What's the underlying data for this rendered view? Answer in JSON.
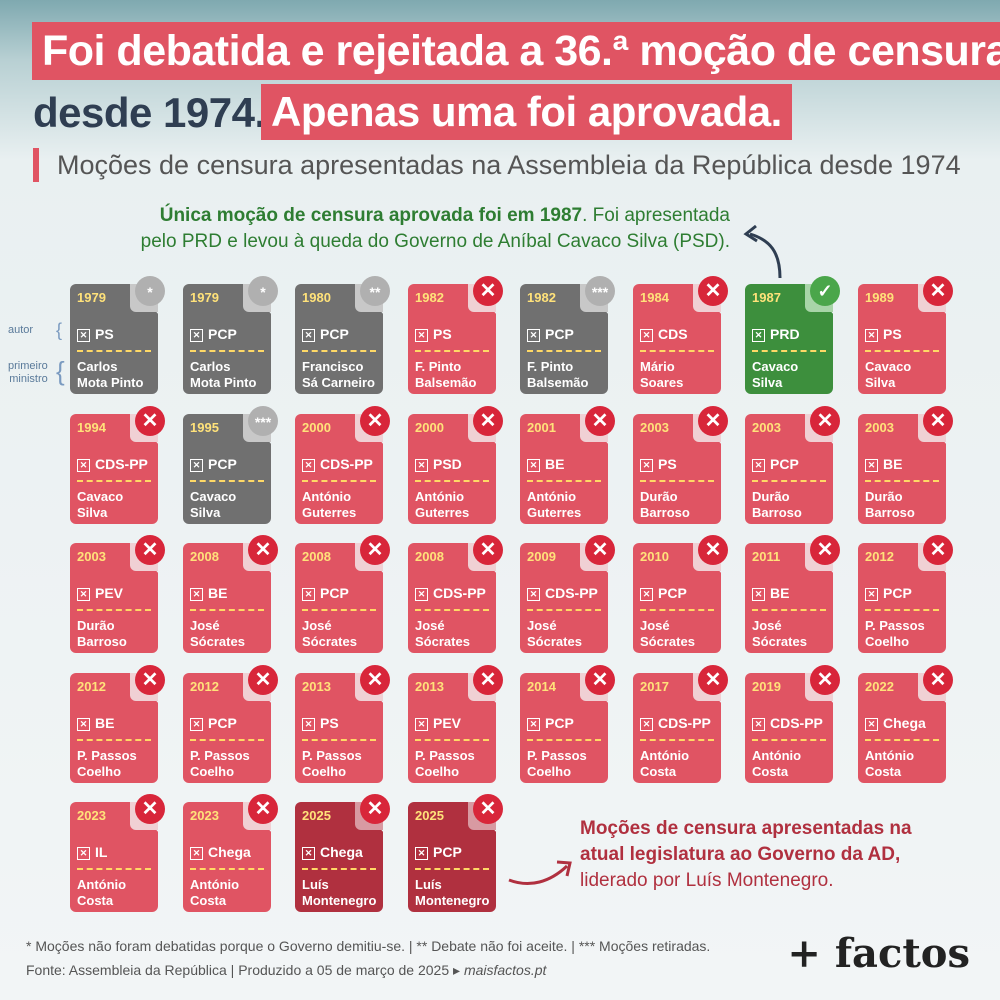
{
  "header": {
    "title_line1": "Foi debatida e rejeitada a 36.ª moção de  censura",
    "title_line2a": "desde 1974.",
    "title_line2b": "Apenas uma foi aprovada.",
    "subtitle": "Moções de censura apresentadas na Assembleia da República desde 1974"
  },
  "top_note": {
    "bold": "Única moção de censura aprovada foi em 1987",
    "rest1": ". Foi apresentada",
    "line2": "pelo PRD e levou à queda do Governo de Aníbal Cavaco Silva (PSD)."
  },
  "legend": {
    "autor": "autor",
    "pm_line1": "primeiro",
    "pm_line2": "ministro"
  },
  "cards": [
    {
      "year": "1979",
      "party": "PS",
      "pm1": "Carlos",
      "pm2": "Mota Pinto",
      "status": "grey",
      "mark": "*"
    },
    {
      "year": "1979",
      "party": "PCP",
      "pm1": "Carlos",
      "pm2": "Mota Pinto",
      "status": "grey",
      "mark": "*"
    },
    {
      "year": "1980",
      "party": "PCP",
      "pm1": "Francisco",
      "pm2": "Sá Carneiro",
      "status": "grey",
      "mark": "**"
    },
    {
      "year": "1982",
      "party": "PS",
      "pm1": "F. Pinto",
      "pm2": "Balsemão",
      "status": "rej",
      "mark": "✕"
    },
    {
      "year": "1982",
      "party": "PCP",
      "pm1": "F. Pinto",
      "pm2": "Balsemão",
      "status": "grey",
      "mark": "***"
    },
    {
      "year": "1984",
      "party": "CDS",
      "pm1": "Mário",
      "pm2": "Soares",
      "status": "rej",
      "mark": "✕"
    },
    {
      "year": "1987",
      "party": "PRD",
      "pm1": "Cavaco",
      "pm2": "Silva",
      "status": "ok",
      "mark": "✓"
    },
    {
      "year": "1989",
      "party": "PS",
      "pm1": "Cavaco",
      "pm2": "Silva",
      "status": "rej",
      "mark": "✕"
    },
    {
      "year": "1994",
      "party": "CDS-PP",
      "pm1": "Cavaco",
      "pm2": "Silva",
      "status": "rej",
      "mark": "✕"
    },
    {
      "year": "1995",
      "party": "PCP",
      "pm1": "Cavaco",
      "pm2": "Silva",
      "status": "grey",
      "mark": "***"
    },
    {
      "year": "2000",
      "party": "CDS-PP",
      "pm1": "António",
      "pm2": "Guterres",
      "status": "rej",
      "mark": "✕"
    },
    {
      "year": "2000",
      "party": "PSD",
      "pm1": "António",
      "pm2": "Guterres",
      "status": "rej",
      "mark": "✕"
    },
    {
      "year": "2001",
      "party": "BE",
      "pm1": "António",
      "pm2": "Guterres",
      "status": "rej",
      "mark": "✕"
    },
    {
      "year": "2003",
      "party": "PS",
      "pm1": "Durão",
      "pm2": "Barroso",
      "status": "rej",
      "mark": "✕"
    },
    {
      "year": "2003",
      "party": "PCP",
      "pm1": "Durão",
      "pm2": "Barroso",
      "status": "rej",
      "mark": "✕"
    },
    {
      "year": "2003",
      "party": "BE",
      "pm1": "Durão",
      "pm2": "Barroso",
      "status": "rej",
      "mark": "✕"
    },
    {
      "year": "2003",
      "party": "PEV",
      "pm1": "Durão",
      "pm2": "Barroso",
      "status": "rej",
      "mark": "✕"
    },
    {
      "year": "2008",
      "party": "BE",
      "pm1": "José",
      "pm2": "Sócrates",
      "status": "rej",
      "mark": "✕"
    },
    {
      "year": "2008",
      "party": "PCP",
      "pm1": "José",
      "pm2": "Sócrates",
      "status": "rej",
      "mark": "✕"
    },
    {
      "year": "2008",
      "party": "CDS-PP",
      "pm1": "José",
      "pm2": "Sócrates",
      "status": "rej",
      "mark": "✕"
    },
    {
      "year": "2009",
      "party": "CDS-PP",
      "pm1": "José",
      "pm2": "Sócrates",
      "status": "rej",
      "mark": "✕"
    },
    {
      "year": "2010",
      "party": "PCP",
      "pm1": "José",
      "pm2": "Sócrates",
      "status": "rej",
      "mark": "✕"
    },
    {
      "year": "2011",
      "party": "BE",
      "pm1": "José",
      "pm2": "Sócrates",
      "status": "rej",
      "mark": "✕"
    },
    {
      "year": "2012",
      "party": "PCP",
      "pm1": "P. Passos",
      "pm2": "Coelho",
      "status": "rej",
      "mark": "✕"
    },
    {
      "year": "2012",
      "party": "BE",
      "pm1": "P. Passos",
      "pm2": "Coelho",
      "status": "rej",
      "mark": "✕"
    },
    {
      "year": "2012",
      "party": "PCP",
      "pm1": "P. Passos",
      "pm2": "Coelho",
      "status": "rej",
      "mark": "✕"
    },
    {
      "year": "2013",
      "party": "PS",
      "pm1": "P. Passos",
      "pm2": "Coelho",
      "status": "rej",
      "mark": "✕"
    },
    {
      "year": "2013",
      "party": "PEV",
      "pm1": "P. Passos",
      "pm2": "Coelho",
      "status": "rej",
      "mark": "✕"
    },
    {
      "year": "2014",
      "party": "PCP",
      "pm1": "P. Passos",
      "pm2": "Coelho",
      "status": "rej",
      "mark": "✕"
    },
    {
      "year": "2017",
      "party": "CDS-PP",
      "pm1": "António",
      "pm2": "Costa",
      "status": "rej",
      "mark": "✕"
    },
    {
      "year": "2019",
      "party": "CDS-PP",
      "pm1": "António",
      "pm2": "Costa",
      "status": "rej",
      "mark": "✕"
    },
    {
      "year": "2022",
      "party": "Chega",
      "pm1": "António",
      "pm2": "Costa",
      "status": "rej",
      "mark": "✕"
    },
    {
      "year": "2023",
      "party": "IL",
      "pm1": "António",
      "pm2": "Costa",
      "status": "rej",
      "mark": "✕"
    },
    {
      "year": "2023",
      "party": "Chega",
      "pm1": "António",
      "pm2": "Costa",
      "status": "rej",
      "mark": "✕"
    },
    {
      "year": "2025",
      "party": "Chega",
      "pm1": "Luís",
      "pm2": "Montenegro",
      "status": "cur",
      "mark": "✕"
    },
    {
      "year": "2025",
      "party": "PCP",
      "pm1": "Luís",
      "pm2": "Montenegro",
      "status": "cur",
      "mark": "✕"
    }
  ],
  "bottom_note": {
    "line1": "Moções de censura apresentadas na",
    "line2": "atual legislatura ao Governo da AD,",
    "line3": "liderado por Luís Montenegro."
  },
  "footer": {
    "line1": "* Moções não foram debatidas porque o Governo demitiu-se. | ** Debate não foi aceite. | *** Moções retiradas.",
    "line2": "Fonte: Assembleia da República | Produzido a 05 de março de 2025 ▸",
    "site": "maisfactos.pt",
    "logo": "+ factos"
  },
  "colors": {
    "accent_red": "#e05463",
    "current_red": "#b0303f",
    "approved_green": "#3d8f3d",
    "withdrawn_grey": "#707070",
    "year_yellow": "#ffe27a"
  }
}
